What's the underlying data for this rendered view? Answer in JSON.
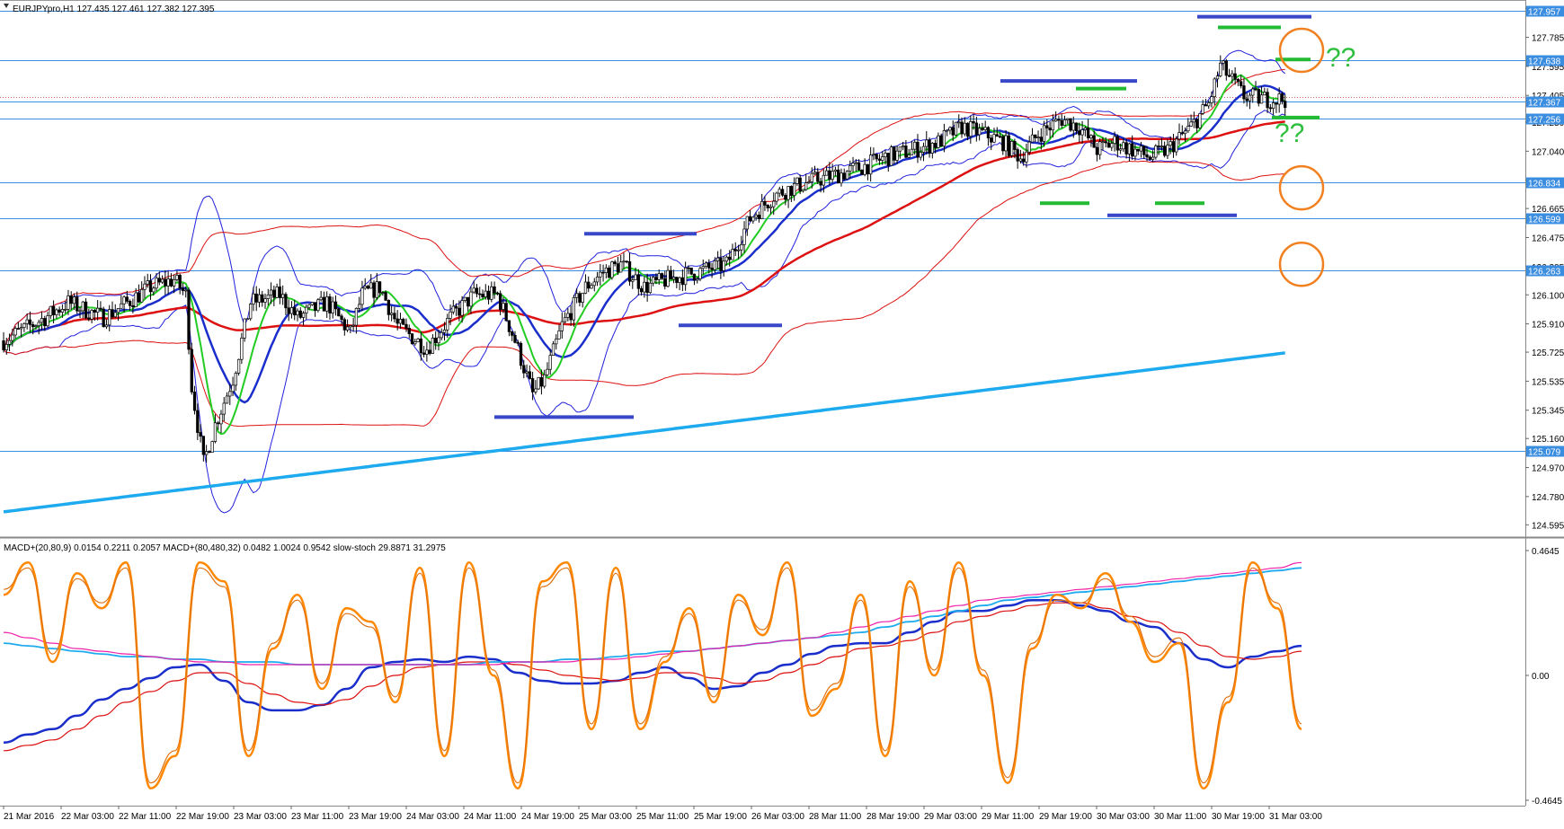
{
  "header": {
    "main_title": "EURJPYpro,H1  127.435 127.461 127.382 127.395",
    "sub_title": "MACD+(20,80,9) 0.0154 0.2211 0.2057  MACD+(80,480,32) 0.0482 1.0024 0.9542  slow-stoch 29.8871 31.2975"
  },
  "chart_data": [
    {
      "type": "candlestick",
      "title": "EURJPYpro,H1  127.435 127.461 127.382 127.395",
      "ylim": [
        124.55,
        128.0
      ],
      "y_ticks": [
        "127.975",
        "127.785",
        "127.595",
        "127.405",
        "127.230",
        "127.040",
        "126.850",
        "126.665",
        "126.475",
        "126.285",
        "126.100",
        "125.910",
        "125.725",
        "125.535",
        "125.345",
        "125.160",
        "124.970",
        "124.780",
        "124.595"
      ],
      "price_levels": [
        {
          "label": "127.957",
          "value": 127.957
        },
        {
          "label": "127.638",
          "value": 127.638
        },
        {
          "label": "127.367",
          "value": 127.367
        },
        {
          "label": "127.256",
          "value": 127.256
        },
        {
          "label": "126.834",
          "value": 126.834
        },
        {
          "label": "126.599",
          "value": 126.599
        },
        {
          "label": "126.263",
          "value": 126.263
        },
        {
          "label": "125.079",
          "value": 125.079
        }
      ],
      "current_price": 127.395,
      "annotations": [
        "??",
        "??"
      ],
      "colors": {
        "hline": "#3b8de0",
        "bull": "#ffffff",
        "bear": "#000000",
        "band": "#2222dd",
        "ma_red": "#dd1111",
        "ma_green": "#22cc22",
        "ma_blue": "#1a2ecc",
        "ma_cyan": "#1eaaee",
        "marker_blue": "#3848c8",
        "marker_green": "#22bb33",
        "circle": "#f08020"
      }
    },
    {
      "type": "line",
      "title": "MACD+(20,80,9) 0.0154 0.2211 0.2057  MACD+(80,480,32) 0.0482 1.0024 0.9542  slow-stoch 29.8871 31.2975",
      "ylim": [
        -0.4645,
        0.4645
      ],
      "y_ticks": [
        "0.4645",
        "0.00",
        "-0.4645"
      ],
      "series": [
        {
          "values": [
            -0.25,
            -0.22,
            -0.2,
            -0.15,
            -0.09,
            -0.05,
            -0.01,
            0.03,
            0.04,
            -0.02,
            -0.1,
            -0.13,
            -0.13,
            -0.11,
            -0.05,
            0.03,
            0.05,
            0.06,
            0.05,
            0.07,
            0.06,
            0.01,
            -0.02,
            -0.03,
            -0.03,
            -0.02,
            0.01,
            0.03,
            -0.01,
            -0.05,
            -0.04,
            0.01,
            0.04,
            0.08,
            0.11,
            0.12,
            0.12,
            0.16,
            0.2,
            0.24,
            0.24,
            0.26,
            0.28,
            0.28,
            0.26,
            0.24,
            0.2,
            0.18,
            0.12,
            0.06,
            0.03,
            0.07,
            0.09,
            0.11
          ]
        },
        {
          "values": [
            -0.28,
            -0.26,
            -0.24,
            -0.2,
            -0.15,
            -0.1,
            -0.06,
            -0.02,
            0.01,
            0.01,
            -0.03,
            -0.07,
            -0.1,
            -0.11,
            -0.09,
            -0.04,
            0.0,
            0.03,
            0.04,
            0.05,
            0.05,
            0.04,
            0.02,
            0.0,
            -0.01,
            -0.02,
            -0.01,
            0.01,
            0.01,
            -0.01,
            -0.03,
            -0.02,
            0.01,
            0.04,
            0.07,
            0.1,
            0.11,
            0.13,
            0.16,
            0.2,
            0.22,
            0.24,
            0.26,
            0.27,
            0.27,
            0.25,
            0.22,
            0.2,
            0.16,
            0.11,
            0.07,
            0.06,
            0.07,
            0.09
          ]
        },
        {
          "values": [
            0.12,
            0.11,
            0.1,
            0.09,
            0.08,
            0.07,
            0.07,
            0.06,
            0.06,
            0.05,
            0.05,
            0.05,
            0.04,
            0.04,
            0.04,
            0.04,
            0.04,
            0.04,
            0.04,
            0.04,
            0.05,
            0.05,
            0.05,
            0.06,
            0.06,
            0.07,
            0.08,
            0.09,
            0.09,
            0.1,
            0.11,
            0.12,
            0.13,
            0.14,
            0.15,
            0.16,
            0.18,
            0.2,
            0.22,
            0.24,
            0.26,
            0.28,
            0.29,
            0.3,
            0.31,
            0.32,
            0.33,
            0.34,
            0.35,
            0.36,
            0.37,
            0.38,
            0.39,
            0.4
          ]
        },
        {
          "values": [
            0.16,
            0.14,
            0.12,
            0.1,
            0.09,
            0.08,
            0.07,
            0.06,
            0.05,
            0.05,
            0.04,
            0.04,
            0.04,
            0.04,
            0.04,
            0.04,
            0.04,
            0.04,
            0.04,
            0.04,
            0.04,
            0.05,
            0.05,
            0.05,
            0.06,
            0.06,
            0.07,
            0.08,
            0.09,
            0.1,
            0.11,
            0.12,
            0.13,
            0.14,
            0.16,
            0.18,
            0.2,
            0.22,
            0.24,
            0.26,
            0.28,
            0.29,
            0.3,
            0.31,
            0.32,
            0.33,
            0.34,
            0.35,
            0.36,
            0.37,
            0.38,
            0.39,
            0.4,
            0.42
          ]
        },
        {
          "values": [
            0.3,
            0.42,
            0.05,
            0.38,
            0.25,
            0.42,
            -0.42,
            -0.3,
            0.42,
            0.35,
            -0.3,
            0.1,
            0.3,
            -0.05,
            0.25,
            0.2,
            -0.1,
            0.4,
            -0.3,
            0.42,
            0.0,
            -0.42,
            0.35,
            0.42,
            -0.2,
            0.4,
            -0.2,
            0.05,
            0.25,
            -0.1,
            0.3,
            0.15,
            0.42,
            -0.15,
            -0.05,
            0.3,
            -0.3,
            0.35,
            0.0,
            0.42,
            0.0,
            -0.4,
            0.1,
            0.3,
            0.25,
            0.38,
            0.2,
            0.05,
            0.12,
            -0.42,
            -0.1,
            0.42,
            0.25,
            -0.2
          ]
        },
        {
          "values": [
            0.32,
            0.4,
            0.08,
            0.36,
            0.27,
            0.4,
            -0.4,
            -0.28,
            0.4,
            0.33,
            -0.28,
            0.12,
            0.28,
            -0.03,
            0.23,
            0.18,
            -0.08,
            0.38,
            -0.28,
            0.4,
            0.02,
            -0.4,
            0.33,
            0.4,
            -0.18,
            0.38,
            -0.18,
            0.07,
            0.23,
            -0.08,
            0.28,
            0.17,
            0.4,
            -0.13,
            -0.03,
            0.28,
            -0.28,
            0.33,
            0.02,
            0.4,
            0.02,
            -0.38,
            0.12,
            0.28,
            0.27,
            0.36,
            0.22,
            0.07,
            0.14,
            -0.4,
            -0.08,
            0.4,
            0.27,
            -0.18
          ]
        }
      ],
      "colors": {
        "macd_fast": "#1a2ecc",
        "macd_fast_signal": "#dd1111",
        "macd_slow": "#1eaaee",
        "macd_slow_signal": "#ee22aa",
        "stoch_main": "#ff8800",
        "stoch_signal": "#e07010"
      }
    },
    {
      "type": "axis",
      "categories": [
        "21 Mar 2016",
        "22 Mar 03:00",
        "22 Mar 11:00",
        "22 Mar 19:00",
        "23 Mar 03:00",
        "23 Mar 11:00",
        "23 Mar 19:00",
        "24 Mar 03:00",
        "24 Mar 11:00",
        "24 Mar 19:00",
        "25 Mar 03:00",
        "25 Mar 11:00",
        "25 Mar 19:00",
        "26 Mar 03:00",
        "28 Mar 11:00",
        "28 Mar 19:00",
        "29 Mar 03:00",
        "29 Mar 11:00",
        "29 Mar 19:00",
        "30 Mar 03:00",
        "30 Mar 11:00",
        "30 Mar 19:00",
        "31 Mar 03:00"
      ]
    }
  ]
}
